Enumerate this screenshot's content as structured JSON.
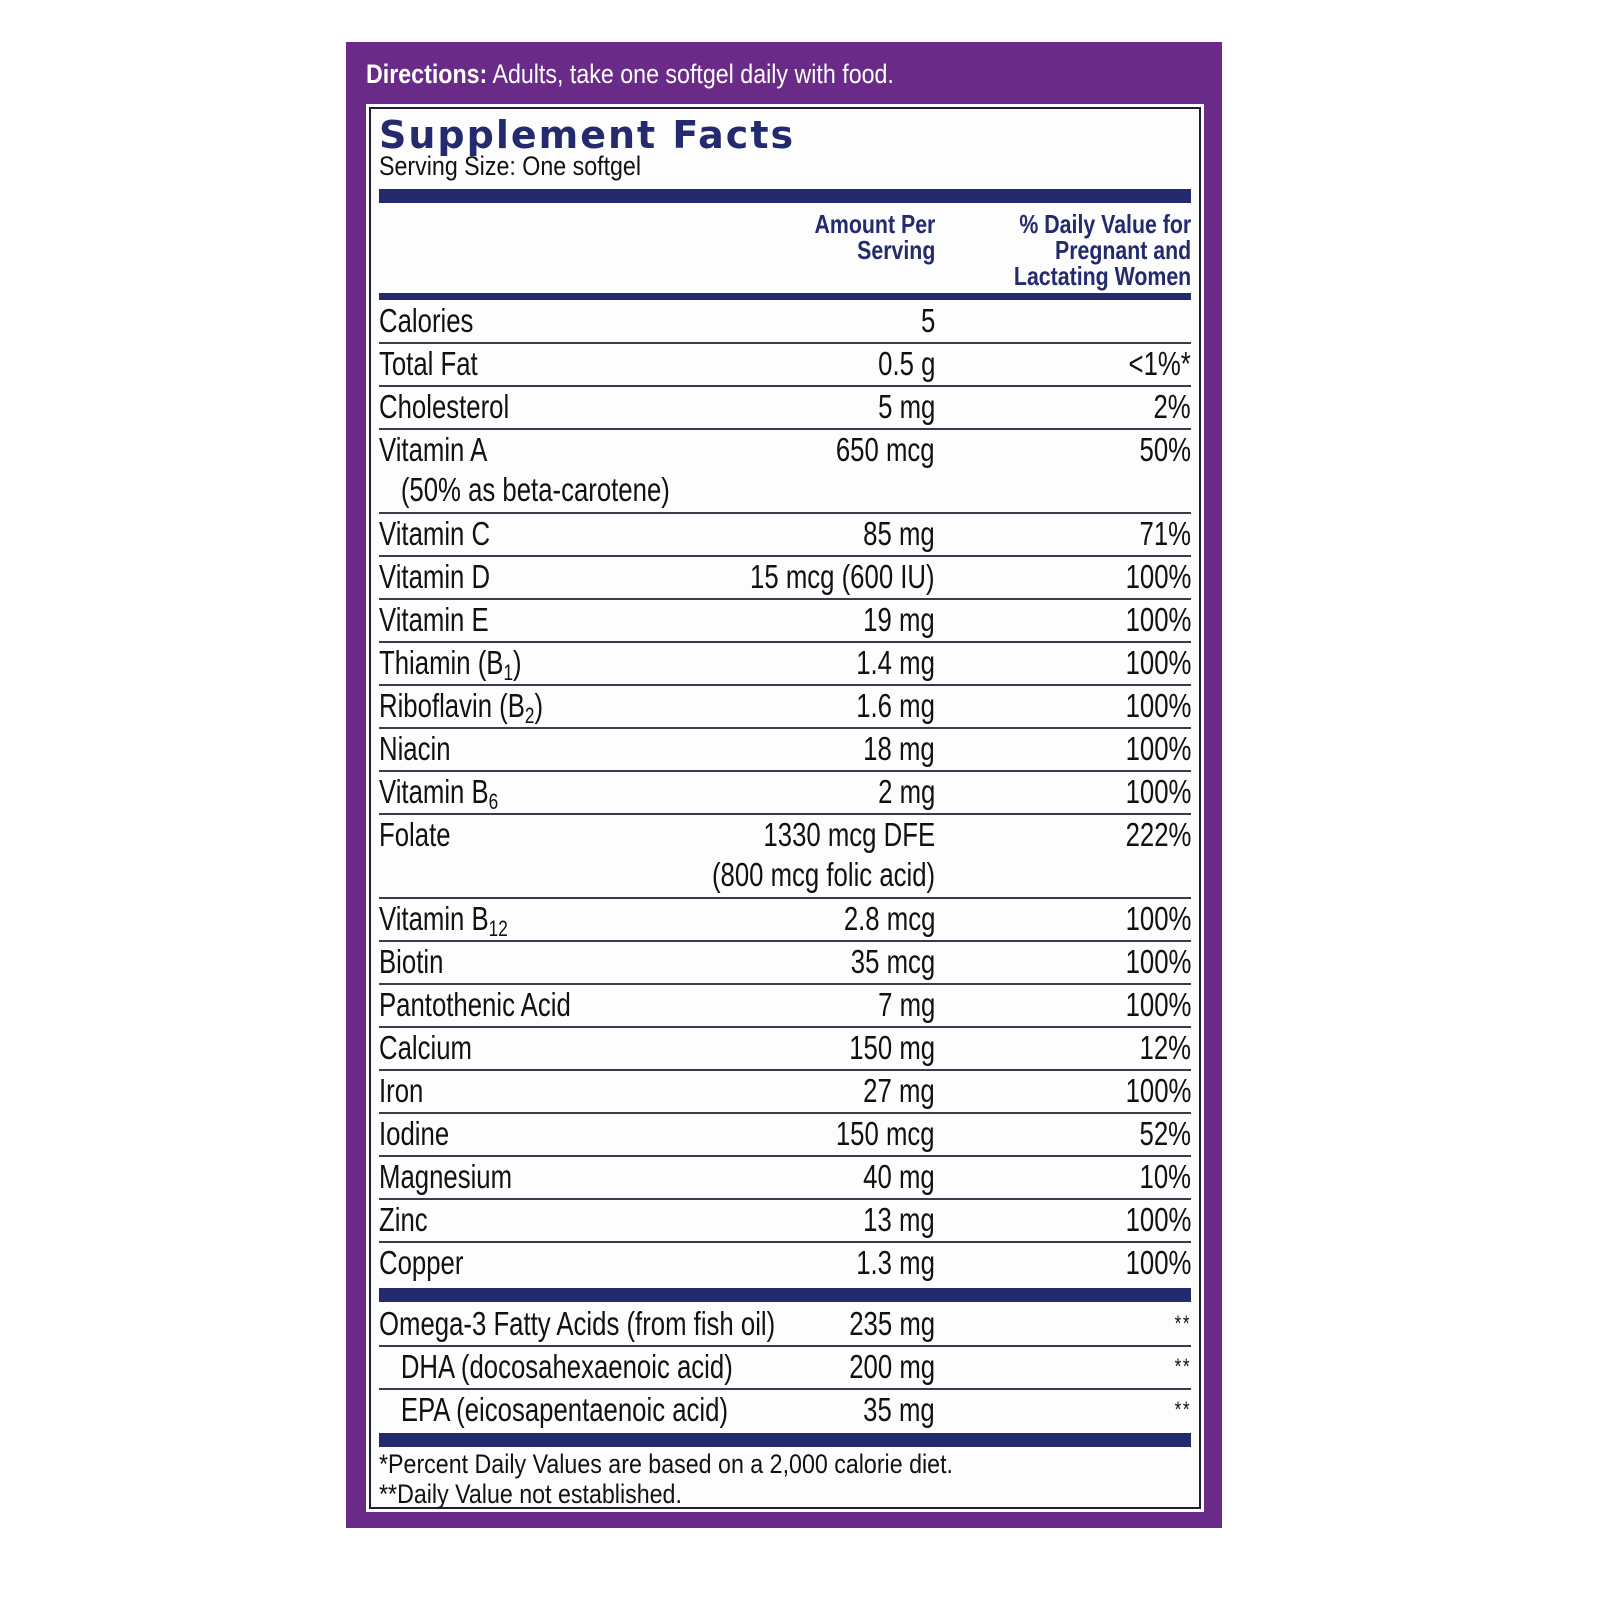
{
  "directions": {
    "label": "Directions:",
    "text": " Adults, take one softgel daily with food."
  },
  "facts": {
    "title": "Supplement Facts",
    "serving_size": "Serving Size: One softgel",
    "col_amount_line1": "Amount Per",
    "col_amount_line2": "Serving",
    "col_dv_line1": "% Daily Value for",
    "col_dv_line2": "Pregnant and",
    "col_dv_line3": "Lactating Women",
    "colors": {
      "panel": "#6a2a87",
      "bars": "#232a6e",
      "title": "#232a6e"
    },
    "nutrients": [
      {
        "name": "Calories",
        "amount": "5",
        "dv": ""
      },
      {
        "name": "Total Fat",
        "amount": "0.5 g",
        "dv": "<1%*"
      },
      {
        "name": "Cholesterol",
        "amount": "5 mg",
        "dv": "2%"
      },
      {
        "name": "Vitamin A",
        "name_note": "(50% as beta-carotene)",
        "amount": "650 mcg",
        "dv": "50%"
      },
      {
        "name": "Vitamin C",
        "amount": "85 mg",
        "dv": "71%"
      },
      {
        "name": "Vitamin D",
        "amount": "15 mcg (600 IU)",
        "dv": "100%"
      },
      {
        "name": "Vitamin E",
        "amount": "19 mg",
        "dv": "100%"
      },
      {
        "name": "Thiamin (B",
        "sub": "1",
        "name_tail": ")",
        "amount": "1.4 mg",
        "dv": "100%"
      },
      {
        "name": "Riboflavin (B",
        "sub": "2",
        "name_tail": ")",
        "amount": "1.6 mg",
        "dv": "100%"
      },
      {
        "name": "Niacin",
        "amount": "18 mg",
        "dv": "100%"
      },
      {
        "name": "Vitamin B",
        "sub": "6",
        "name_tail": "",
        "amount": "2 mg",
        "dv": "100%"
      },
      {
        "name": "Folate",
        "amount": "1330 mcg DFE",
        "amount_note": "(800 mcg folic acid)",
        "dv": "222%"
      },
      {
        "name": "Vitamin B",
        "sub": "12",
        "name_tail": "",
        "amount": "2.8 mcg",
        "dv": "100%"
      },
      {
        "name": "Biotin",
        "amount": "35 mcg",
        "dv": "100%"
      },
      {
        "name": "Pantothenic Acid",
        "amount": "7 mg",
        "dv": "100%"
      },
      {
        "name": "Calcium",
        "amount": "150 mg",
        "dv": "12%"
      },
      {
        "name": "Iron",
        "amount": "27 mg",
        "dv": "100%"
      },
      {
        "name": "Iodine",
        "amount": "150 mcg",
        "dv": "52%"
      },
      {
        "name": "Magnesium",
        "amount": "40 mg",
        "dv": "10%"
      },
      {
        "name": "Zinc",
        "amount": "13 mg",
        "dv": "100%"
      },
      {
        "name": "Copper",
        "amount": "1.3 mg",
        "dv": "100%"
      }
    ],
    "fatty_acids": [
      {
        "name": "Omega-3 Fatty Acids (from fish oil)",
        "amount": "235 mg",
        "dv": "**"
      },
      {
        "name": "DHA (docosahexaenoic acid)",
        "amount": "200 mg",
        "dv": "**"
      },
      {
        "name": "EPA (eicosapentaenoic acid)",
        "amount": "35 mg",
        "dv": "**"
      }
    ],
    "footnote1": "*Percent Daily Values are based on a 2,000 calorie diet.",
    "footnote2": "**Daily Value not established."
  }
}
